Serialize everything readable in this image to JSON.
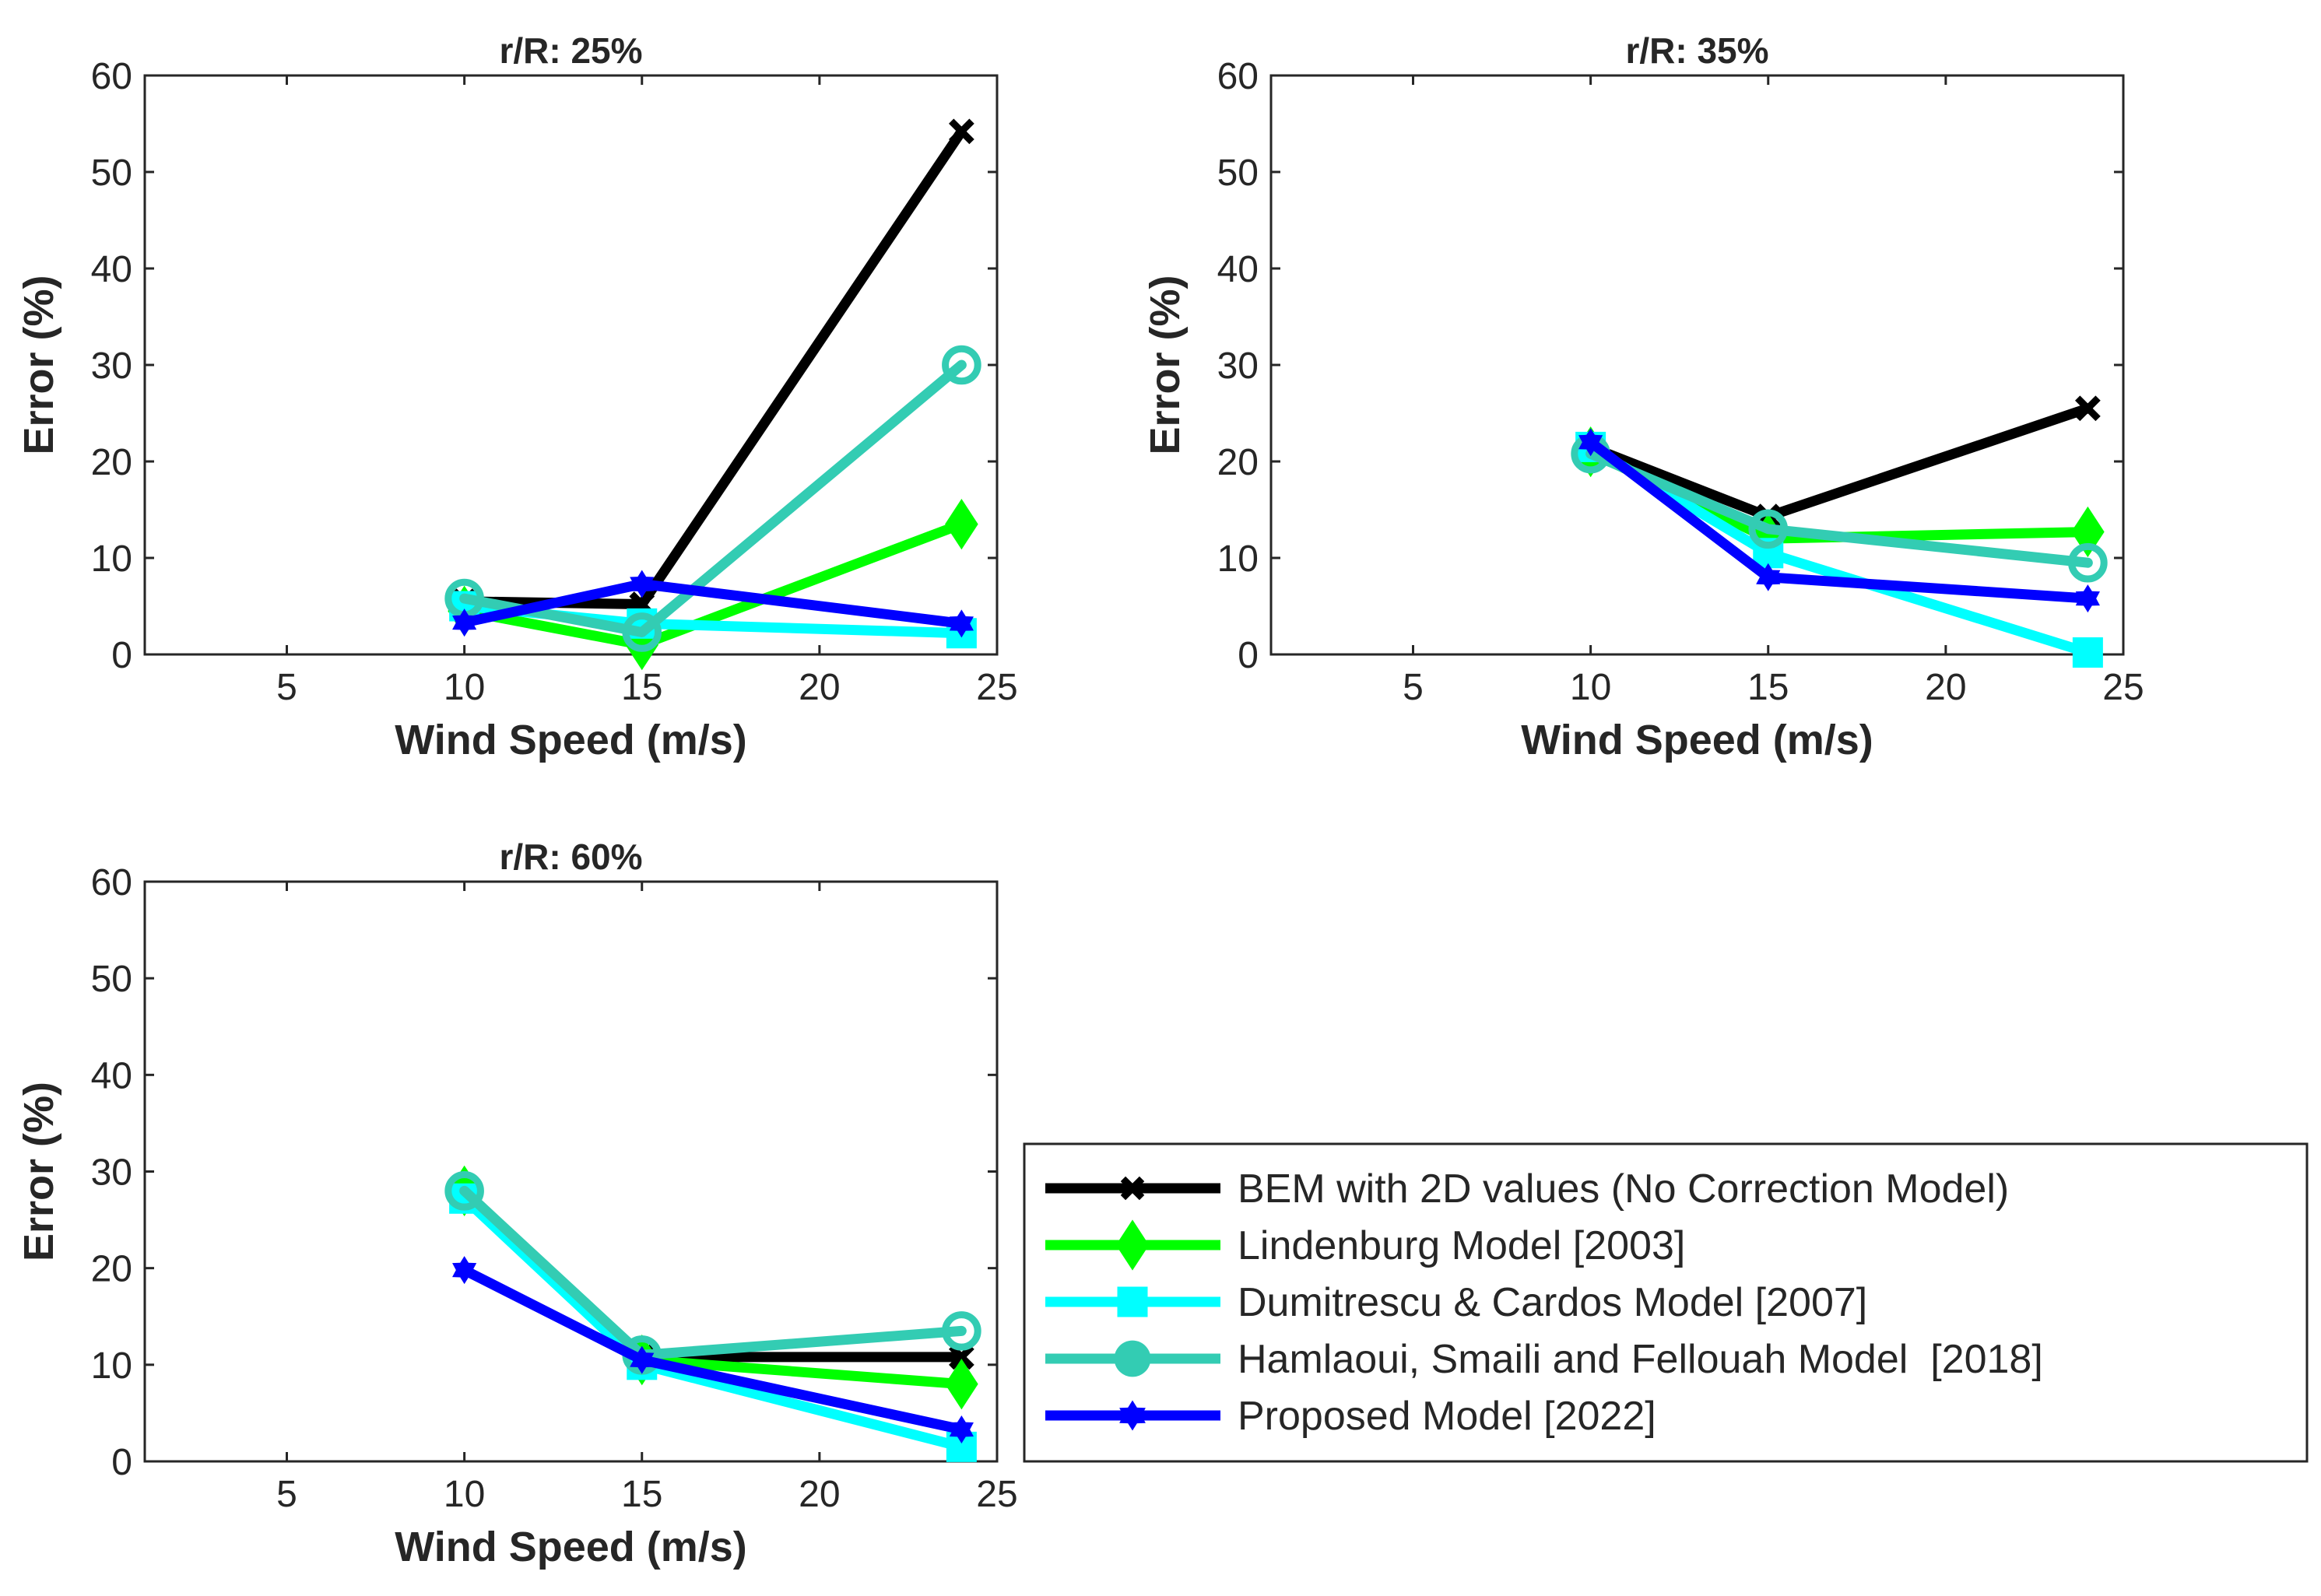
{
  "chart_data": [
    {
      "type": "line",
      "title": "r/R: 25%",
      "xlabel": "Wind Speed (m/s)",
      "ylabel": "Error (%)",
      "xlim": [
        1,
        25
      ],
      "ylim": [
        0,
        60
      ],
      "xticks": [
        5,
        10,
        15,
        20,
        25
      ],
      "yticks": [
        0,
        10,
        20,
        30,
        40,
        50,
        60
      ],
      "x": [
        10,
        15,
        24
      ],
      "series": [
        {
          "name": "BEM with 2D values (No Correction Model)",
          "values": [
            5.5,
            5.2,
            54.2
          ]
        },
        {
          "name": "Lindenburg Model [2003]",
          "values": [
            4.5,
            1.0,
            13.5
          ]
        },
        {
          "name": "Dumitrescu & Cardos Model [2007]",
          "values": [
            5.0,
            3.2,
            2.2
          ]
        },
        {
          "name": "Hamlaoui, Smaili and Fellouah Model  [2018]",
          "values": [
            5.8,
            2.3,
            30.0
          ]
        },
        {
          "name": "Proposed Model [2022]",
          "values": [
            3.3,
            7.3,
            3.2
          ]
        }
      ]
    },
    {
      "type": "line",
      "title": "r/R: 35%",
      "xlabel": "Wind Speed (m/s)",
      "ylabel": "Error (%)",
      "xlim": [
        1,
        25
      ],
      "ylim": [
        0,
        60
      ],
      "xticks": [
        5,
        10,
        15,
        20,
        25
      ],
      "yticks": [
        0,
        10,
        20,
        30,
        40,
        50,
        60
      ],
      "x": [
        10,
        15,
        24
      ],
      "series": [
        {
          "name": "BEM with 2D values (No Correction Model)",
          "values": [
            21.5,
            14.3,
            25.5
          ]
        },
        {
          "name": "Lindenburg Model [2003]",
          "values": [
            21.0,
            12.0,
            12.7
          ]
        },
        {
          "name": "Dumitrescu & Cardos Model [2007]",
          "values": [
            21.5,
            10.5,
            0.2
          ]
        },
        {
          "name": "Hamlaoui, Smaili and Fellouah Model  [2018]",
          "values": [
            20.8,
            13.0,
            9.5
          ]
        },
        {
          "name": "Proposed Model [2022]",
          "values": [
            22.0,
            8.0,
            5.8
          ]
        }
      ]
    },
    {
      "type": "line",
      "title": "r/R: 60%",
      "xlabel": "Wind Speed (m/s)",
      "ylabel": "Error (%)",
      "xlim": [
        1,
        25
      ],
      "ylim": [
        0,
        60
      ],
      "xticks": [
        5,
        10,
        15,
        20,
        25
      ],
      "yticks": [
        0,
        10,
        20,
        30,
        40,
        50,
        60
      ],
      "x": [
        10,
        15,
        24
      ],
      "series": [
        {
          "name": "BEM with 2D values (No Correction Model)",
          "values": [
            28.0,
            10.8,
            10.8
          ]
        },
        {
          "name": "Lindenburg Model [2003]",
          "values": [
            28.0,
            10.5,
            8.0
          ]
        },
        {
          "name": "Dumitrescu & Cardos Model [2007]",
          "values": [
            27.2,
            10.0,
            1.5
          ]
        },
        {
          "name": "Hamlaoui, Smaili and Fellouah Model  [2018]",
          "values": [
            28.0,
            11.0,
            13.5
          ]
        },
        {
          "name": "Proposed Model [2022]",
          "values": [
            19.8,
            10.5,
            3.3
          ]
        }
      ]
    }
  ],
  "legend": {
    "placement": "bottom-right",
    "entries": [
      {
        "label": "BEM with 2D values (No Correction Model)",
        "color": "#000000",
        "marker": "x"
      },
      {
        "label": "Lindenburg Model [2003]",
        "color": "#00ff00",
        "marker": "diamond"
      },
      {
        "label": "Dumitrescu & Cardos Model [2007]",
        "color": "#00ffff",
        "marker": "square"
      },
      {
        "label": "Hamlaoui, Smaili and Fellouah Model  [2018]",
        "color": "#33ccb3",
        "marker": "circle"
      },
      {
        "label": "Proposed Model [2022]",
        "color": "#0000ff",
        "marker": "hexagram"
      }
    ]
  }
}
